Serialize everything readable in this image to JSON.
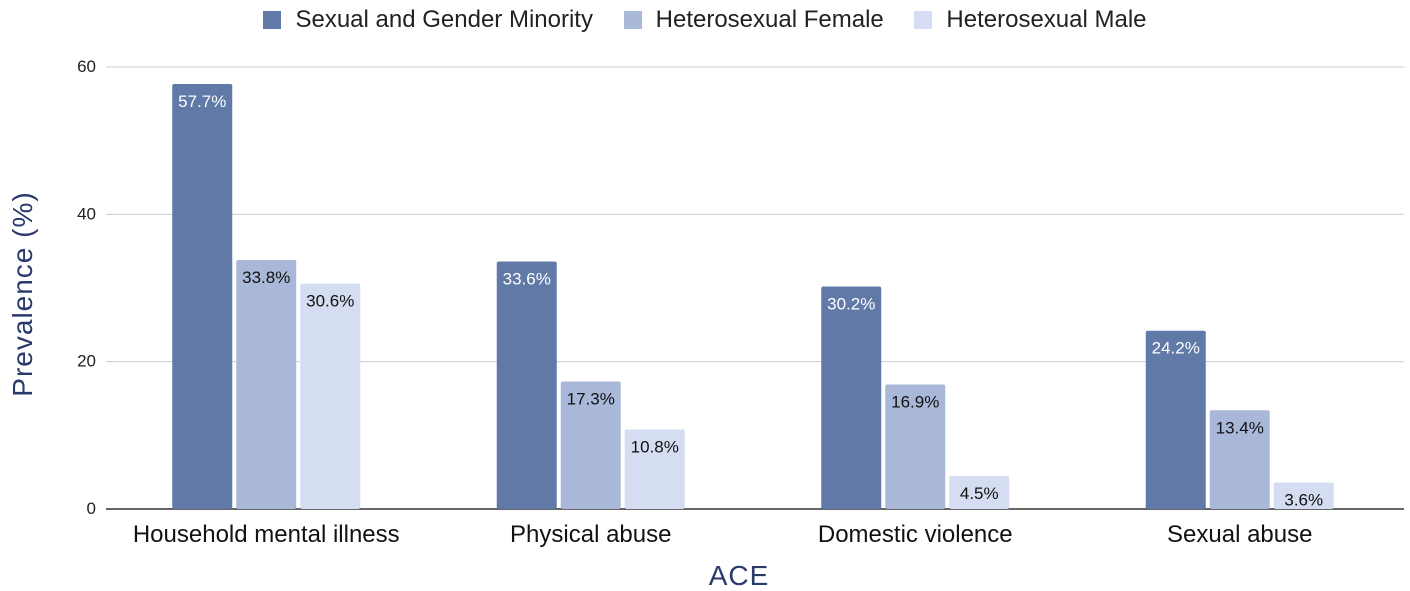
{
  "chart_data": {
    "type": "bar",
    "xlabel": "ACE",
    "ylabel": "Prevalence (%)",
    "ylim": [
      0,
      60
    ],
    "yticks": [
      0,
      20,
      40,
      60
    ],
    "grid": true,
    "legend_position": "top-center",
    "categories": [
      "Household mental illness",
      "Physical abuse",
      "Domestic violence",
      "Sexual abuse"
    ],
    "series": [
      {
        "name": "Sexual and Gender Minority",
        "color": "#6079a6",
        "label_color": "#ffffff",
        "values": [
          57.7,
          33.6,
          30.2,
          24.2
        ],
        "labels": [
          "57.7%",
          "33.6%",
          "30.2%",
          "24.2%"
        ]
      },
      {
        "name": "Heterosexual Female",
        "color": "#a9b8d9",
        "label_color": "#111111",
        "values": [
          33.8,
          17.3,
          16.9,
          13.4
        ],
        "labels": [
          "33.8%",
          "17.3%",
          "16.9%",
          "13.4%"
        ]
      },
      {
        "name": "Heterosexual Male",
        "color": "#d4ddf1",
        "label_color": "#111111",
        "values": [
          30.6,
          10.8,
          4.5,
          3.6
        ],
        "labels": [
          "30.6%",
          "10.8%",
          "4.5%",
          "3.6%"
        ]
      }
    ]
  }
}
